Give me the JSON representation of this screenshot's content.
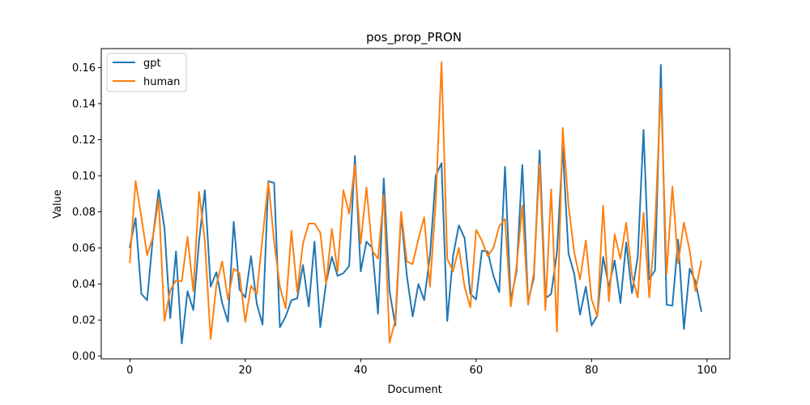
{
  "chart_data": {
    "type": "line",
    "title": "pos_prop_PRON",
    "xlabel": "Document",
    "ylabel": "Value",
    "xlim": [
      -4.95,
      103.95
    ],
    "ylim": [
      -0.0015,
      0.1705
    ],
    "xticks": [
      0,
      20,
      40,
      60,
      80,
      100
    ],
    "yticks": [
      0.0,
      0.02,
      0.04,
      0.06,
      0.08,
      0.1,
      0.12,
      0.14,
      0.16
    ],
    "ytick_labels": [
      "0.00",
      "0.02",
      "0.04",
      "0.06",
      "0.08",
      "0.10",
      "0.12",
      "0.14",
      "0.16"
    ],
    "legend_position": "upper-left",
    "series": [
      {
        "name": "gpt",
        "color": "#1f77b4",
        "values": [
          0.0605,
          0.0765,
          0.0345,
          0.031,
          0.066,
          0.092,
          0.071,
          0.021,
          0.058,
          0.007,
          0.036,
          0.0255,
          0.064,
          0.092,
          0.0385,
          0.0465,
          0.0295,
          0.019,
          0.0745,
          0.037,
          0.0325,
          0.0555,
          0.029,
          0.0175,
          0.097,
          0.096,
          0.016,
          0.022,
          0.031,
          0.032,
          0.0505,
          0.0275,
          0.0635,
          0.016,
          0.0405,
          0.055,
          0.0445,
          0.046,
          0.05,
          0.111,
          0.047,
          0.0635,
          0.06,
          0.0235,
          0.0985,
          0.036,
          0.017,
          0.0785,
          0.0445,
          0.022,
          0.04,
          0.031,
          0.0555,
          0.1,
          0.107,
          0.0195,
          0.0555,
          0.0725,
          0.0655,
          0.0345,
          0.0315,
          0.0585,
          0.058,
          0.0445,
          0.0355,
          0.105,
          0.0305,
          0.047,
          0.106,
          0.03,
          0.0435,
          0.114,
          0.032,
          0.0345,
          0.0575,
          0.1155,
          0.057,
          0.0455,
          0.023,
          0.0385,
          0.017,
          0.0225,
          0.055,
          0.0385,
          0.053,
          0.0295,
          0.063,
          0.035,
          0.055,
          0.1255,
          0.0425,
          0.0475,
          0.1615,
          0.0285,
          0.028,
          0.0645,
          0.015,
          0.0485,
          0.0415,
          0.025
        ]
      },
      {
        "name": "human",
        "color": "#ff7f0e",
        "values": [
          0.052,
          0.097,
          0.077,
          0.056,
          0.066,
          0.087,
          0.0195,
          0.0365,
          0.042,
          0.0415,
          0.066,
          0.036,
          0.091,
          0.0635,
          0.0095,
          0.0395,
          0.0525,
          0.0315,
          0.0485,
          0.046,
          0.019,
          0.039,
          0.0345,
          0.066,
          0.0965,
          0.0635,
          0.0385,
          0.0265,
          0.0695,
          0.0355,
          0.0625,
          0.0735,
          0.0735,
          0.0685,
          0.04,
          0.0705,
          0.047,
          0.092,
          0.079,
          0.106,
          0.0625,
          0.0935,
          0.0585,
          0.054,
          0.0895,
          0.0075,
          0.02,
          0.08,
          0.0525,
          0.051,
          0.065,
          0.077,
          0.0385,
          0.0855,
          0.163,
          0.054,
          0.047,
          0.06,
          0.0385,
          0.027,
          0.07,
          0.064,
          0.0555,
          0.06,
          0.072,
          0.076,
          0.0275,
          0.0495,
          0.0835,
          0.0285,
          0.046,
          0.1065,
          0.0255,
          0.0925,
          0.0135,
          0.1265,
          0.0835,
          0.0575,
          0.0425,
          0.064,
          0.0315,
          0.022,
          0.0835,
          0.0305,
          0.0675,
          0.054,
          0.074,
          0.0445,
          0.0325,
          0.0795,
          0.0325,
          0.0715,
          0.1485,
          0.0455,
          0.094,
          0.0515,
          0.074,
          0.0585,
          0.036,
          0.0525
        ]
      }
    ]
  }
}
